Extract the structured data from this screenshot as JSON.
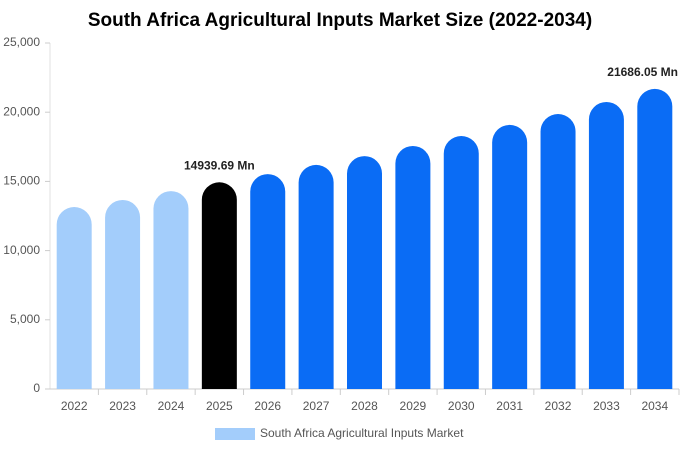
{
  "chart_data": {
    "type": "bar",
    "title": "South Africa Agricultural Inputs Market Size (2022-2034)",
    "categories": [
      "2022",
      "2023",
      "2024",
      "2025",
      "2026",
      "2027",
      "2028",
      "2029",
      "2030",
      "2031",
      "2032",
      "2033",
      "2034"
    ],
    "series": [
      {
        "name": "South Africa Agricultural Inputs Market",
        "color": "#a3cdfb",
        "values": [
          13150,
          13660,
          14300,
          14939.69,
          15530,
          16190,
          16830,
          17560,
          18280,
          19080,
          19870,
          20740,
          21686.05
        ],
        "value_labels": [
          null,
          null,
          null,
          "14939.69 Mn",
          null,
          null,
          null,
          null,
          null,
          null,
          null,
          null,
          "21686.05 Mn"
        ],
        "bar_colors": [
          "#a3cdfb",
          "#a3cdfb",
          "#a3cdfb",
          "#000000",
          "#0a6cf5",
          "#0a6cf5",
          "#0a6cf5",
          "#0a6cf5",
          "#0a6cf5",
          "#0a6cf5",
          "#0a6cf5",
          "#0a6cf5",
          "#0a6cf5"
        ]
      }
    ],
    "ylim": [
      0,
      25000
    ],
    "yticks": [
      0,
      {
        "value": 5000,
        "label": "5,000"
      },
      {
        "value": 10000,
        "label": "10,000"
      },
      {
        "value": 15000,
        "label": "15,000"
      },
      {
        "value": 20000,
        "label": "20,000"
      },
      {
        "value": 25000,
        "label": "25,000"
      }
    ],
    "legend": "bottom"
  }
}
